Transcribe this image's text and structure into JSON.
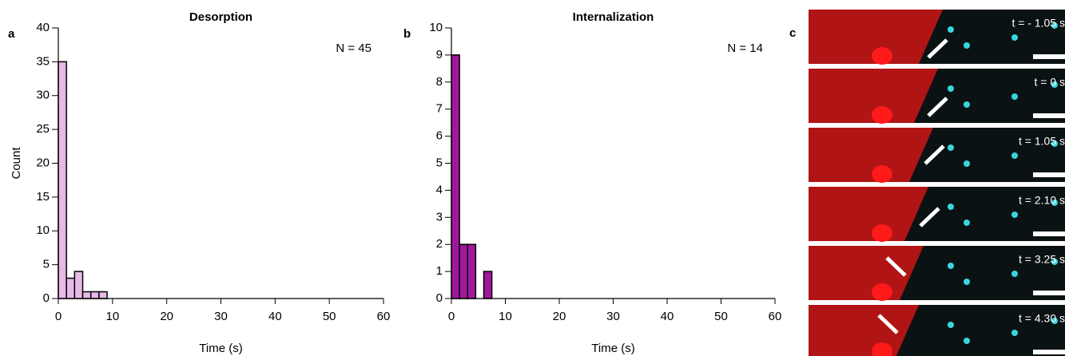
{
  "chart_data": [
    {
      "type": "histogram",
      "panel_label": "a",
      "title": "Desorption",
      "annotation": "N = 45",
      "bins": [
        0,
        1.5,
        3,
        4.5,
        6,
        7.5,
        9
      ],
      "values": [
        35,
        3,
        4,
        1,
        1,
        1
      ],
      "color": "#e8b9e6",
      "xlim": [
        0,
        60
      ],
      "ylim": [
        0,
        40
      ],
      "xticks": [
        0,
        10,
        20,
        30,
        40,
        50,
        60
      ],
      "yticks": [
        0,
        5,
        10,
        15,
        20,
        25,
        30,
        35,
        40
      ],
      "xlabel": "Time (s)",
      "ylabel": "Count"
    },
    {
      "type": "histogram",
      "panel_label": "b",
      "title": "Internalization",
      "annotation": "N = 14",
      "bins": [
        0,
        1.5,
        3,
        4.5,
        6,
        7.5
      ],
      "values": [
        9,
        2,
        2,
        0,
        1
      ],
      "color": "#a1179b",
      "xlim": [
        0,
        60
      ],
      "ylim": [
        0,
        10
      ],
      "xticks": [
        0,
        10,
        20,
        30,
        40,
        50,
        60
      ],
      "yticks": [
        0,
        1,
        2,
        3,
        4,
        5,
        6,
        7,
        8,
        9,
        10
      ],
      "xlabel": "Time (s)"
    }
  ],
  "image_panel": {
    "panel_label": "c",
    "frames": [
      "t = - 1.05 s",
      "t = 0 s",
      "t = 1.05 s",
      "t = 2.10 s",
      "t = 3.25 s",
      "t = 4.30 s"
    ]
  }
}
